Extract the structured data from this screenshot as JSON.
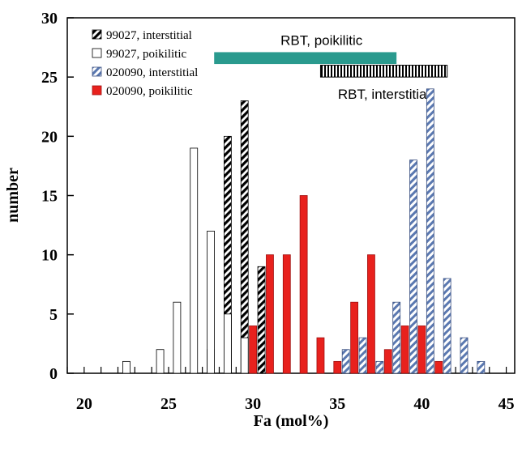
{
  "chart_data": {
    "type": "bar",
    "xlabel": "Fa (mol%)",
    "ylabel": "number",
    "xlim": [
      19,
      45.5
    ],
    "ylim": [
      0,
      30
    ],
    "x_ticks": [
      20,
      25,
      30,
      35,
      40,
      45
    ],
    "y_ticks": [
      0,
      5,
      10,
      15,
      20,
      25,
      30
    ],
    "grid": false,
    "legend_position": "top-left",
    "series": [
      {
        "name": "99027, interstitial",
        "pattern": "zigzag",
        "color": "#000000",
        "points": [
          {
            "x": 27.5,
            "y": 2
          },
          {
            "x": 28.5,
            "y": 20
          },
          {
            "x": 29.5,
            "y": 23
          },
          {
            "x": 30.5,
            "y": 9
          }
        ]
      },
      {
        "name": "99027, poikilitic",
        "pattern": "open",
        "color": "#000000",
        "points": [
          {
            "x": 22.5,
            "y": 1
          },
          {
            "x": 24.5,
            "y": 2
          },
          {
            "x": 25.5,
            "y": 6
          },
          {
            "x": 26.5,
            "y": 19
          },
          {
            "x": 27.5,
            "y": 12
          },
          {
            "x": 28.5,
            "y": 5
          },
          {
            "x": 29.5,
            "y": 3
          }
        ]
      },
      {
        "name": "020090, interstitial",
        "pattern": "diagonal",
        "color": "#5a78b0",
        "points": [
          {
            "x": 35.5,
            "y": 2
          },
          {
            "x": 36.5,
            "y": 3
          },
          {
            "x": 37.5,
            "y": 1
          },
          {
            "x": 38.5,
            "y": 6
          },
          {
            "x": 39.5,
            "y": 18
          },
          {
            "x": 40.5,
            "y": 24
          },
          {
            "x": 41.5,
            "y": 8
          },
          {
            "x": 42.5,
            "y": 3
          },
          {
            "x": 43.5,
            "y": 1
          }
        ]
      },
      {
        "name": "020090, poikilitic",
        "pattern": "solid",
        "color": "#e8211d",
        "points": [
          {
            "x": 30.0,
            "y": 4
          },
          {
            "x": 31.0,
            "y": 10
          },
          {
            "x": 32.0,
            "y": 10
          },
          {
            "x": 33.0,
            "y": 15
          },
          {
            "x": 34.0,
            "y": 3
          },
          {
            "x": 35.0,
            "y": 1
          },
          {
            "x": 36.0,
            "y": 6
          },
          {
            "x": 37.0,
            "y": 10
          },
          {
            "x": 38.0,
            "y": 2
          },
          {
            "x": 39.0,
            "y": 4
          },
          {
            "x": 40.0,
            "y": 4
          },
          {
            "x": 41.0,
            "y": 1
          }
        ]
      }
    ],
    "range_bars": [
      {
        "label": "RBT, poikilitic",
        "x_start": 27.7,
        "x_end": 38.5,
        "y": 26.6,
        "color": "#2a9a8e",
        "style": "solid"
      },
      {
        "label": "RBT, interstitial",
        "x_start": 34.0,
        "x_end": 41.5,
        "y": 25.5,
        "color": "#000000",
        "style": "vertical-hatch"
      }
    ]
  }
}
